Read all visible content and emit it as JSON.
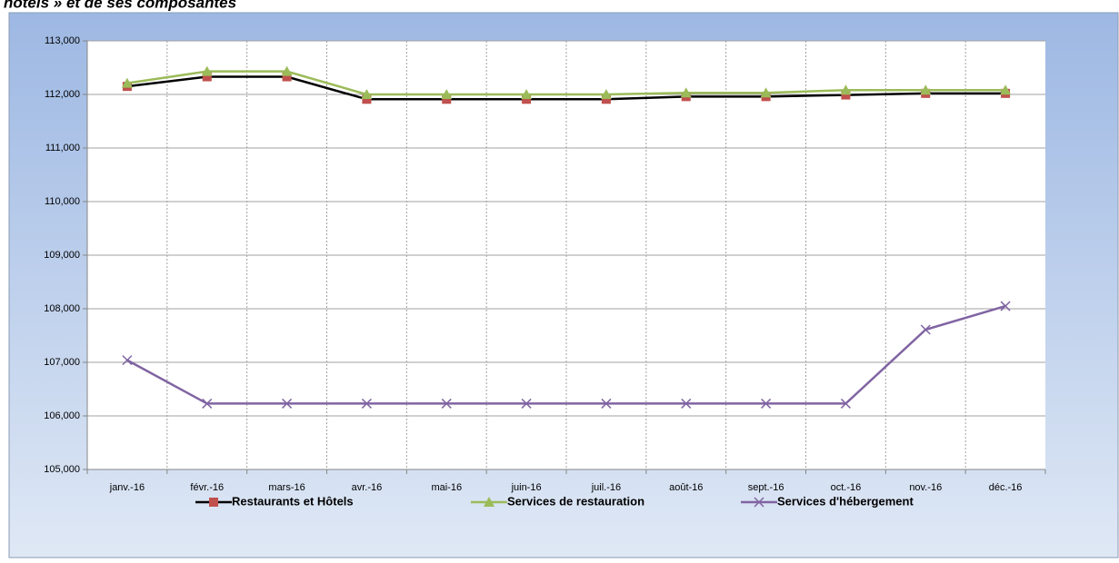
{
  "chart_data": {
    "type": "line",
    "title": "hôtels » et de ses composantes",
    "categories": [
      "janv.-16",
      "févr.-16",
      "mars-16",
      "avr.-16",
      "mai-16",
      "juin-16",
      "juil.-16",
      "août-16",
      "sept.-16",
      "oct.-16",
      "nov.-16",
      "déc.-16"
    ],
    "series": [
      {
        "name": "Restaurants et Hôtels",
        "color": "#000000",
        "marker_color": "#c0504d",
        "marker": "square",
        "values": [
          112150,
          112330,
          112330,
          111910,
          111910,
          111910,
          111910,
          111960,
          111960,
          111990,
          112020,
          112020
        ]
      },
      {
        "name": "Services de restauration",
        "color": "#9bbb59",
        "marker_color": "#9bbb59",
        "marker": "triangle",
        "values": [
          112210,
          112430,
          112430,
          112000,
          112000,
          112000,
          112000,
          112030,
          112030,
          112080,
          112080,
          112080
        ]
      },
      {
        "name": "Services d'hébergement",
        "color": "#8064a2",
        "marker_color": "#8064a2",
        "marker": "x",
        "values": [
          107040,
          106230,
          106230,
          106230,
          106230,
          106230,
          106230,
          106230,
          106230,
          106230,
          107610,
          108050
        ]
      }
    ],
    "ylim": [
      105000,
      113000
    ],
    "yticks": [
      {
        "value": 105000,
        "label": "105,000"
      },
      {
        "value": 106000,
        "label": "106,000"
      },
      {
        "value": 107000,
        "label": "107,000"
      },
      {
        "value": 108000,
        "label": "108,000"
      },
      {
        "value": 109000,
        "label": "109,000"
      },
      {
        "value": 110000,
        "label": "110,000"
      },
      {
        "value": 111000,
        "label": "111,000"
      },
      {
        "value": 112000,
        "label": "112,000"
      },
      {
        "value": 113000,
        "label": "113,000"
      }
    ],
    "grid": true,
    "legend": "bottom"
  }
}
